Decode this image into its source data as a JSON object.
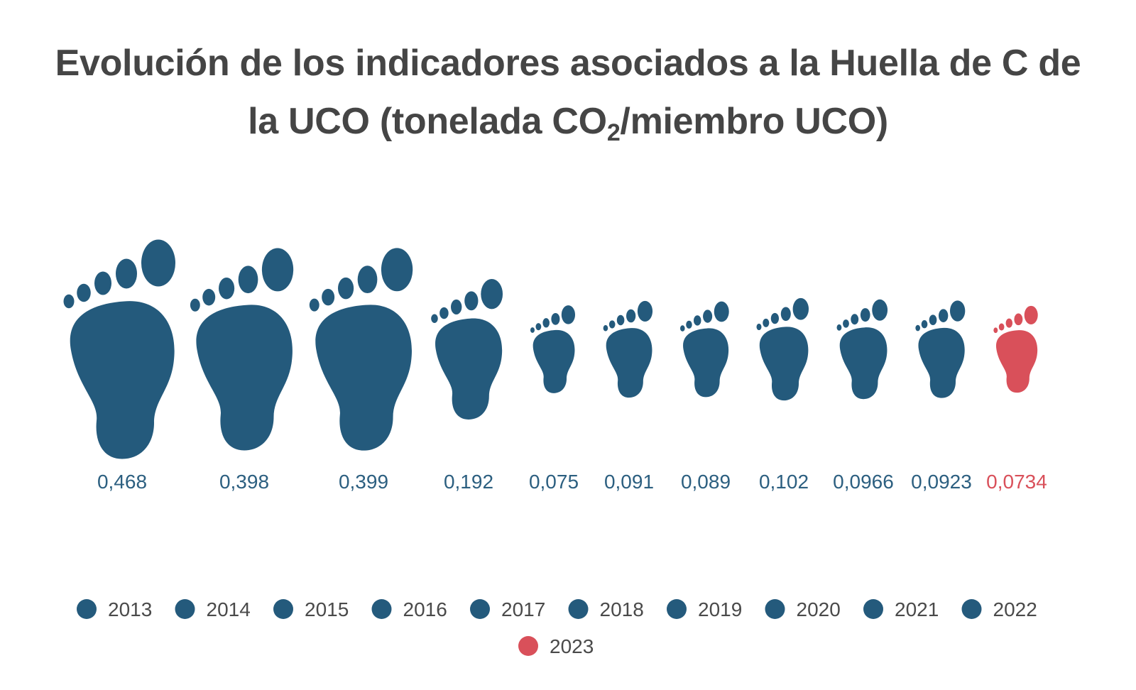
{
  "chart_data": {
    "type": "bar",
    "title_main": "Evolución de los indicadores asociados a la Huella de C de la UCO (tonelada CO",
    "title_sub": "2",
    "title_tail": "/miembro UCO)",
    "categories": [
      "2013",
      "2014",
      "2015",
      "2016",
      "2017",
      "2018",
      "2019",
      "2020",
      "2021",
      "2022",
      "2023"
    ],
    "values": [
      0.468,
      0.398,
      0.399,
      0.192,
      0.075,
      0.091,
      0.089,
      0.102,
      0.0966,
      0.0923,
      0.0734
    ],
    "value_labels": [
      "0,468",
      "0,398",
      "0,399",
      "0,192",
      "0,075",
      "0,091",
      "0,089",
      "0,102",
      "0,0966",
      "0,0923",
      "0,0734"
    ],
    "colors": [
      "#245a7c",
      "#245a7c",
      "#245a7c",
      "#245a7c",
      "#245a7c",
      "#245a7c",
      "#245a7c",
      "#245a7c",
      "#245a7c",
      "#245a7c",
      "#d9505a"
    ],
    "legend_placement": "bottom",
    "grid": false,
    "mark_shape": "footprint-icon"
  }
}
